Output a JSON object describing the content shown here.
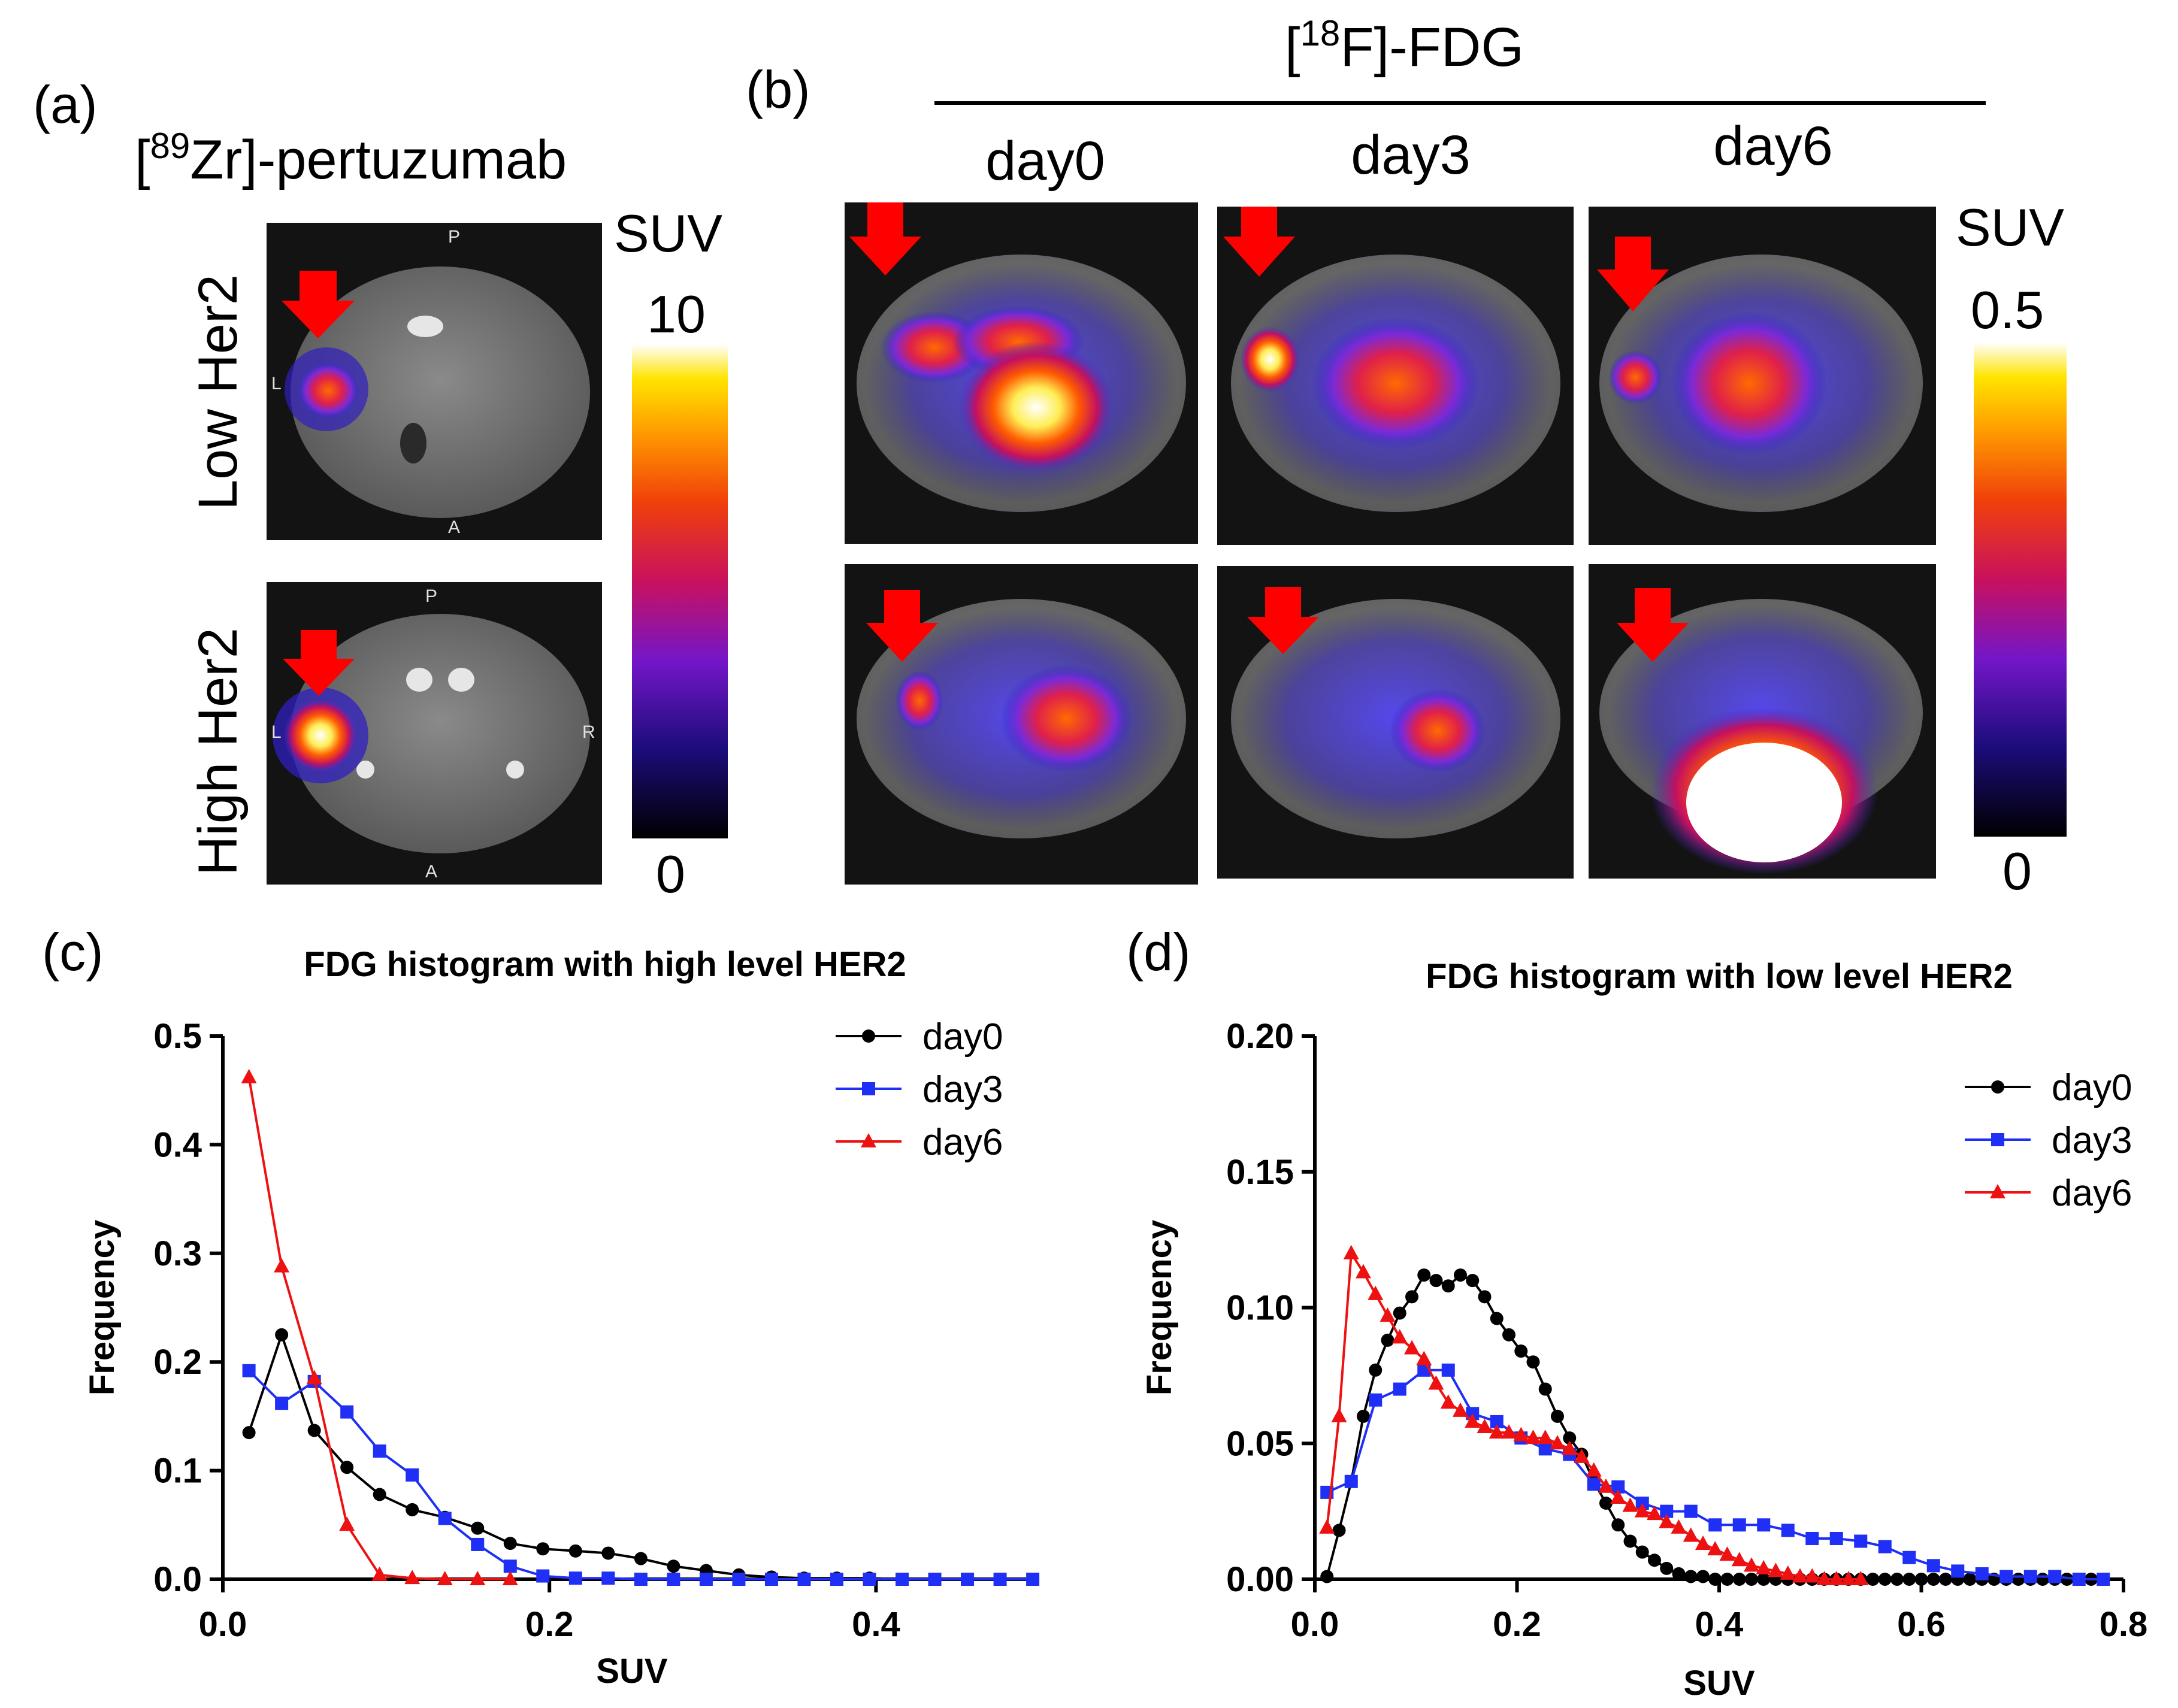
{
  "panels": {
    "a": {
      "label": "(a)",
      "tracer_prefix": "[",
      "tracer_sup": "89",
      "tracer_suffix": "Zr]-pertuzumab",
      "rows": [
        "Low Her2",
        "High Her2"
      ],
      "colorbar": {
        "title": "SUV",
        "max": "10",
        "min": "0"
      },
      "orientation": {
        "P": "P",
        "A": "A",
        "L": "L",
        "R": "R"
      }
    },
    "b": {
      "label": "(b)",
      "tracer_prefix": "[",
      "tracer_sup": "18",
      "tracer_suffix": "F]-FDG",
      "columns": [
        "day0",
        "day3",
        "day6"
      ],
      "colorbar": {
        "title": "SUV",
        "max": "0.5",
        "min": "0"
      }
    },
    "c": {
      "label": "(c)"
    },
    "d": {
      "label": "(d)"
    }
  },
  "chart_data": [
    {
      "type": "line",
      "title": "FDG histogram with high level HER2",
      "xlabel": "SUV",
      "ylabel": "Frequency",
      "xlim": [
        0,
        0.5
      ],
      "ylim": [
        0,
        0.5
      ],
      "xticks": [
        "0.0",
        "0.2",
        "0.4"
      ],
      "xtick_values": [
        0,
        0.2,
        0.4
      ],
      "yticks": [
        "0.0",
        "0.1",
        "0.2",
        "0.3",
        "0.4",
        "0.5"
      ],
      "ytick_values": [
        0,
        0.1,
        0.2,
        0.3,
        0.4,
        0.5
      ],
      "legend": "top-right",
      "series": [
        {
          "name": "day0",
          "color": "#000000",
          "marker": "circle",
          "x": [
            0.016,
            0.036,
            0.056,
            0.076,
            0.096,
            0.116,
            0.136,
            0.156,
            0.176,
            0.196,
            0.216,
            0.236,
            0.256,
            0.276,
            0.296,
            0.316,
            0.336,
            0.356,
            0.376,
            0.396,
            0.416,
            0.436,
            0.456,
            0.476,
            0.496
          ],
          "y": [
            0.135,
            0.225,
            0.137,
            0.103,
            0.078,
            0.064,
            0.057,
            0.047,
            0.033,
            0.028,
            0.026,
            0.024,
            0.019,
            0.012,
            0.008,
            0.004,
            0.002,
            0.001,
            0.001,
            0.001,
            0,
            0,
            0,
            0,
            0
          ]
        },
        {
          "name": "day3",
          "color": "#1f2ff5",
          "marker": "square",
          "x": [
            0.016,
            0.036,
            0.056,
            0.076,
            0.096,
            0.116,
            0.136,
            0.156,
            0.176,
            0.196,
            0.216,
            0.236,
            0.256,
            0.276,
            0.296,
            0.316,
            0.336,
            0.356,
            0.376,
            0.396,
            0.416,
            0.436,
            0.456,
            0.476,
            0.496
          ],
          "y": [
            0.192,
            0.162,
            0.182,
            0.154,
            0.118,
            0.096,
            0.056,
            0.032,
            0.012,
            0.003,
            0.001,
            0.001,
            0,
            0,
            0,
            0,
            0,
            0,
            0,
            0,
            0,
            0,
            0,
            0,
            0
          ]
        },
        {
          "name": "day6",
          "color": "#ee1111",
          "marker": "triangle",
          "x": [
            0.016,
            0.036,
            0.056,
            0.076,
            0.096,
            0.116,
            0.136,
            0.156,
            0.176
          ],
          "y": [
            0.462,
            0.288,
            0.185,
            0.05,
            0.004,
            0.001,
            0,
            0,
            0
          ]
        }
      ]
    },
    {
      "type": "line",
      "title": "FDG histogram with low level HER2",
      "xlabel": "SUV",
      "ylabel": "Frequency",
      "xlim": [
        0,
        0.8
      ],
      "ylim": [
        0,
        0.2
      ],
      "xticks": [
        "0.0",
        "0.2",
        "0.4",
        "0.6",
        "0.8"
      ],
      "xtick_values": [
        0,
        0.2,
        0.4,
        0.6,
        0.8
      ],
      "yticks": [
        "0.00",
        "0.05",
        "0.10",
        "0.15",
        "0.20"
      ],
      "ytick_values": [
        0,
        0.05,
        0.1,
        0.15,
        0.2
      ],
      "legend": "top-right",
      "series": [
        {
          "name": "day0",
          "color": "#000000",
          "marker": "circle",
          "x": [
            0.012,
            0.024,
            0.036,
            0.048,
            0.06,
            0.072,
            0.084,
            0.096,
            0.108,
            0.12,
            0.132,
            0.144,
            0.156,
            0.168,
            0.18,
            0.192,
            0.204,
            0.216,
            0.228,
            0.24,
            0.252,
            0.264,
            0.276,
            0.288,
            0.3,
            0.312,
            0.324,
            0.336,
            0.348,
            0.36,
            0.372,
            0.384,
            0.396,
            0.408,
            0.42,
            0.432,
            0.444,
            0.456,
            0.468,
            0.48,
            0.492,
            0.504,
            0.516,
            0.528,
            0.54,
            0.552,
            0.564,
            0.576,
            0.588,
            0.6,
            0.612,
            0.624,
            0.636,
            0.648,
            0.66,
            0.672,
            0.684,
            0.696,
            0.708,
            0.72,
            0.732,
            0.744,
            0.756,
            0.768,
            0.78
          ],
          "y": [
            0.001,
            0.018,
            0.036,
            0.06,
            0.077,
            0.088,
            0.098,
            0.104,
            0.112,
            0.11,
            0.108,
            0.112,
            0.11,
            0.104,
            0.096,
            0.09,
            0.084,
            0.08,
            0.07,
            0.06,
            0.052,
            0.046,
            0.036,
            0.028,
            0.02,
            0.014,
            0.01,
            0.007,
            0.004,
            0.002,
            0.001,
            0.001,
            0,
            0,
            0,
            0,
            0,
            0,
            0,
            0,
            0,
            0,
            0,
            0,
            0,
            0,
            0,
            0,
            0,
            0,
            0,
            0,
            0,
            0,
            0,
            0,
            0,
            0,
            0,
            0,
            0,
            0,
            0,
            0,
            0
          ]
        },
        {
          "name": "day3",
          "color": "#1f2ff5",
          "marker": "square",
          "x": [
            0.012,
            0.036,
            0.06,
            0.084,
            0.108,
            0.132,
            0.156,
            0.18,
            0.204,
            0.228,
            0.252,
            0.276,
            0.3,
            0.324,
            0.348,
            0.372,
            0.396,
            0.42,
            0.444,
            0.468,
            0.492,
            0.516,
            0.54,
            0.564,
            0.588,
            0.612,
            0.636,
            0.66,
            0.684,
            0.708,
            0.732,
            0.756,
            0.78
          ],
          "y": [
            0.032,
            0.036,
            0.066,
            0.07,
            0.077,
            0.077,
            0.061,
            0.058,
            0.052,
            0.048,
            0.046,
            0.035,
            0.034,
            0.028,
            0.025,
            0.025,
            0.02,
            0.02,
            0.02,
            0.018,
            0.015,
            0.015,
            0.014,
            0.012,
            0.008,
            0.005,
            0.003,
            0.002,
            0.001,
            0.001,
            0.001,
            0,
            0
          ]
        },
        {
          "name": "day6",
          "color": "#ee1111",
          "marker": "triangle",
          "x": [
            0.012,
            0.024,
            0.036,
            0.048,
            0.06,
            0.072,
            0.084,
            0.096,
            0.108,
            0.12,
            0.132,
            0.144,
            0.156,
            0.168,
            0.18,
            0.192,
            0.204,
            0.216,
            0.228,
            0.24,
            0.252,
            0.264,
            0.276,
            0.288,
            0.3,
            0.312,
            0.324,
            0.336,
            0.348,
            0.36,
            0.372,
            0.384,
            0.396,
            0.408,
            0.42,
            0.432,
            0.444,
            0.456,
            0.468,
            0.48,
            0.492,
            0.504,
            0.516,
            0.528,
            0.54
          ],
          "y": [
            0.019,
            0.06,
            0.12,
            0.113,
            0.105,
            0.097,
            0.089,
            0.085,
            0.081,
            0.072,
            0.065,
            0.062,
            0.058,
            0.056,
            0.054,
            0.054,
            0.053,
            0.052,
            0.052,
            0.05,
            0.048,
            0.045,
            0.04,
            0.034,
            0.03,
            0.027,
            0.025,
            0.024,
            0.021,
            0.019,
            0.016,
            0.013,
            0.011,
            0.009,
            0.007,
            0.005,
            0.004,
            0.003,
            0.002,
            0.001,
            0.001,
            0,
            0,
            0,
            0
          ]
        }
      ]
    }
  ]
}
